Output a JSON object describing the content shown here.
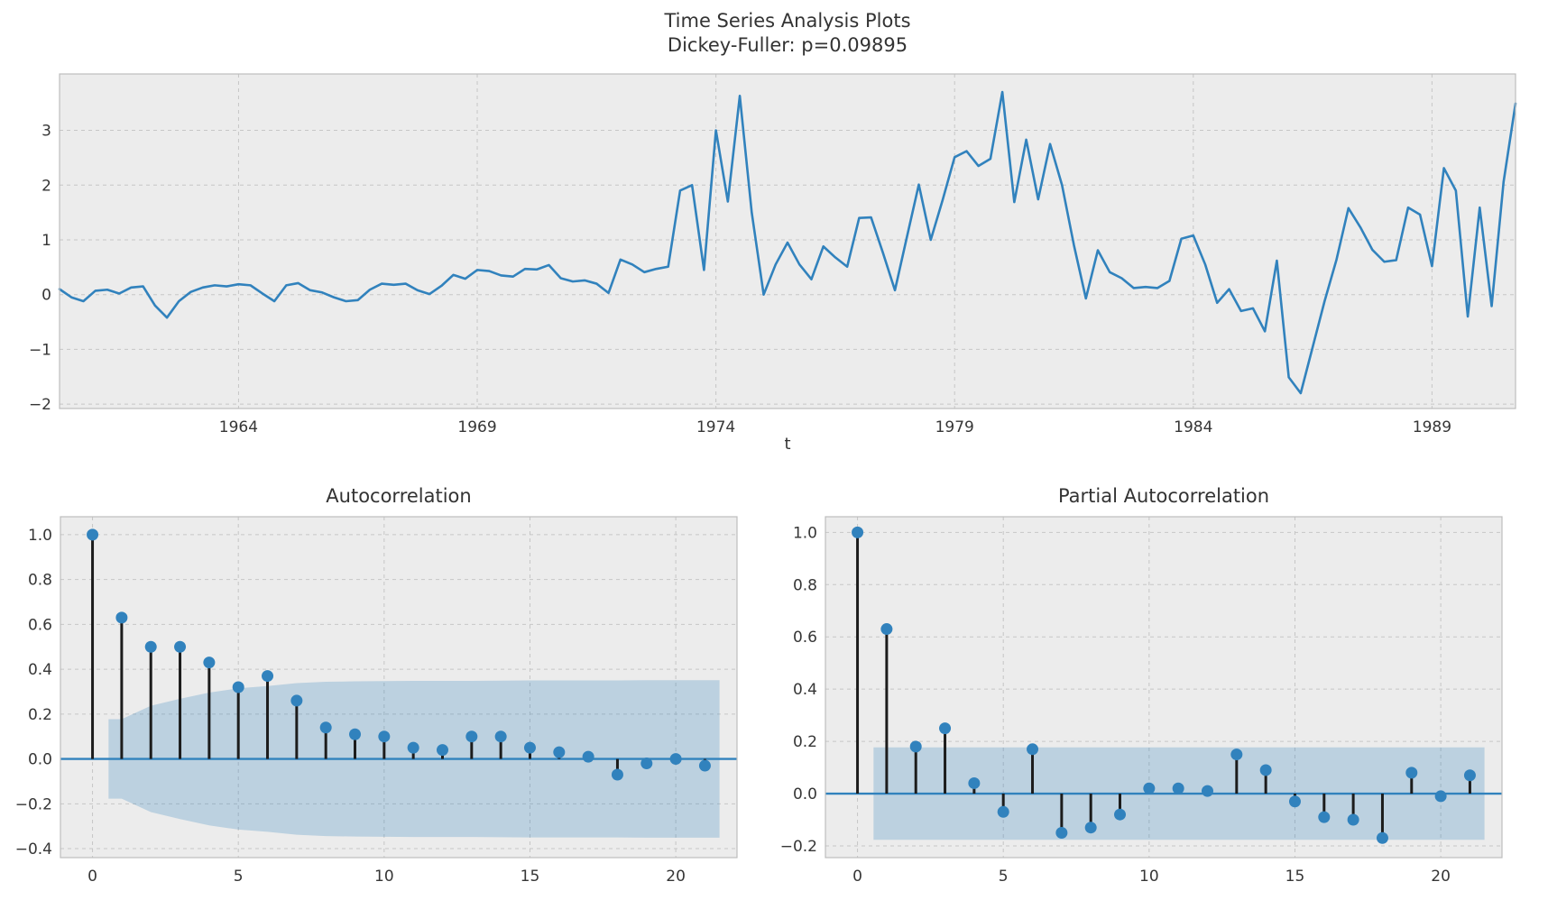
{
  "figure_title_line1": "Time Series Analysis Plots",
  "figure_title_line2": "Dickey-Fuller: p=0.09895",
  "colors": {
    "line": "#3182bd",
    "marker": "#3182bd",
    "stem": "#1c1c1c",
    "zero_line": "#3182bd",
    "band_fill": "#3182bd",
    "band_opacity": 0.26,
    "axes_bg": "#ececec",
    "grid": "#c6c6c6",
    "border": "#bdbdbd",
    "text": "#363636"
  },
  "chart_data": [
    {
      "type": "line",
      "title_line1": "Time Series Analysis Plots",
      "title_line2": "Dickey-Fuller: p=0.09895",
      "xlabel": "t",
      "x_start": 1960.25,
      "x_step": 0.25,
      "xlim": [
        1960.25,
        1990.75
      ],
      "ylim": [
        -2.08,
        4.03
      ],
      "grid": true,
      "xticks": [
        {
          "v": 1964,
          "label": "1964"
        },
        {
          "v": 1969,
          "label": "1969"
        },
        {
          "v": 1974,
          "label": "1974"
        },
        {
          "v": 1979,
          "label": "1979"
        },
        {
          "v": 1984,
          "label": "1984"
        },
        {
          "v": 1989,
          "label": "1989"
        }
      ],
      "yticks": [
        {
          "v": -2,
          "label": "−2"
        },
        {
          "v": -1,
          "label": "−1"
        },
        {
          "v": 0,
          "label": "0"
        },
        {
          "v": 1,
          "label": "1"
        },
        {
          "v": 2,
          "label": "2"
        },
        {
          "v": 3,
          "label": "3"
        }
      ],
      "values": [
        0.1,
        -0.05,
        -0.12,
        0.07,
        0.09,
        0.02,
        0.13,
        0.15,
        -0.2,
        -0.42,
        -0.12,
        0.05,
        0.13,
        0.17,
        0.15,
        0.19,
        0.17,
        0.02,
        -0.12,
        0.17,
        0.21,
        0.08,
        0.04,
        -0.05,
        -0.12,
        -0.1,
        0.09,
        0.2,
        0.18,
        0.2,
        0.08,
        0.01,
        0.16,
        0.36,
        0.29,
        0.45,
        0.43,
        0.35,
        0.33,
        0.47,
        0.46,
        0.54,
        0.3,
        0.24,
        0.26,
        0.2,
        0.03,
        0.64,
        0.55,
        0.41,
        0.47,
        0.51,
        1.9,
        2.0,
        0.45,
        3.0,
        1.7,
        3.63,
        1.5,
        0.0,
        0.55,
        0.95,
        0.55,
        0.28,
        0.88,
        0.68,
        0.51,
        1.4,
        1.41,
        0.76,
        0.08,
        1.05,
        2.01,
        1.0,
        1.73,
        2.51,
        2.62,
        2.35,
        2.48,
        3.7,
        1.69,
        2.83,
        1.74,
        2.75,
        2.0,
        0.9,
        -0.07,
        0.81,
        0.41,
        0.3,
        0.12,
        0.14,
        0.12,
        0.25,
        1.02,
        1.08,
        0.55,
        -0.15,
        0.1,
        -0.3,
        -0.25,
        -0.67,
        0.62,
        -1.51,
        -1.8,
        -0.96,
        -0.12,
        0.64,
        1.58,
        1.23,
        0.82,
        0.6,
        0.63,
        1.59,
        1.46,
        0.52,
        2.31,
        1.9,
        -0.4,
        1.59,
        -0.21,
        2.06,
        3.49
      ]
    },
    {
      "type": "stem",
      "title": "Autocorrelation",
      "xlim": [
        -1.1,
        22.1
      ],
      "ylim": [
        -0.44,
        1.08
      ],
      "grid": true,
      "xticks": [
        {
          "v": 0,
          "label": "0"
        },
        {
          "v": 5,
          "label": "5"
        },
        {
          "v": 10,
          "label": "10"
        },
        {
          "v": 15,
          "label": "15"
        },
        {
          "v": 20,
          "label": "20"
        }
      ],
      "yticks": [
        {
          "v": -0.4,
          "label": "−0.4"
        },
        {
          "v": -0.2,
          "label": "−0.2"
        },
        {
          "v": 0.0,
          "label": "0.0"
        },
        {
          "v": 0.2,
          "label": "0.2"
        },
        {
          "v": 0.4,
          "label": "0.4"
        },
        {
          "v": 0.6,
          "label": "0.6"
        },
        {
          "v": 0.8,
          "label": "0.8"
        },
        {
          "v": 1.0,
          "label": "1.0"
        }
      ],
      "values": [
        1.0,
        0.63,
        0.5,
        0.5,
        0.43,
        0.32,
        0.37,
        0.26,
        0.14,
        0.11,
        0.1,
        0.05,
        0.04,
        0.1,
        0.1,
        0.05,
        0.03,
        0.01,
        -0.07,
        -0.02,
        0.0,
        -0.03
      ],
      "band": {
        "x_start": 0.55,
        "x_end": 21.5,
        "half_widths": [
          0.177,
          0.237,
          0.268,
          0.296,
          0.315,
          0.325,
          0.338,
          0.344,
          0.346,
          0.347,
          0.348,
          0.348,
          0.348,
          0.349,
          0.35,
          0.35,
          0.35,
          0.35,
          0.351,
          0.351,
          0.351
        ]
      }
    },
    {
      "type": "stem",
      "title": "Partial Autocorrelation",
      "xlim": [
        -1.1,
        22.1
      ],
      "ylim": [
        -0.245,
        1.06
      ],
      "grid": true,
      "xticks": [
        {
          "v": 0,
          "label": "0"
        },
        {
          "v": 5,
          "label": "5"
        },
        {
          "v": 10,
          "label": "10"
        },
        {
          "v": 15,
          "label": "15"
        },
        {
          "v": 20,
          "label": "20"
        }
      ],
      "yticks": [
        {
          "v": -0.2,
          "label": "−0.2"
        },
        {
          "v": 0.0,
          "label": "0.0"
        },
        {
          "v": 0.2,
          "label": "0.2"
        },
        {
          "v": 0.4,
          "label": "0.4"
        },
        {
          "v": 0.6,
          "label": "0.6"
        },
        {
          "v": 0.8,
          "label": "0.8"
        },
        {
          "v": 1.0,
          "label": "1.0"
        }
      ],
      "values": [
        1.0,
        0.63,
        0.18,
        0.25,
        0.04,
        -0.07,
        0.17,
        -0.15,
        -0.13,
        -0.08,
        0.02,
        0.02,
        0.01,
        0.15,
        0.09,
        -0.03,
        -0.09,
        -0.1,
        -0.17,
        0.08,
        -0.01,
        0.07
      ],
      "band": {
        "x_start": 0.55,
        "x_end": 21.5,
        "half_width": 0.177
      }
    }
  ]
}
